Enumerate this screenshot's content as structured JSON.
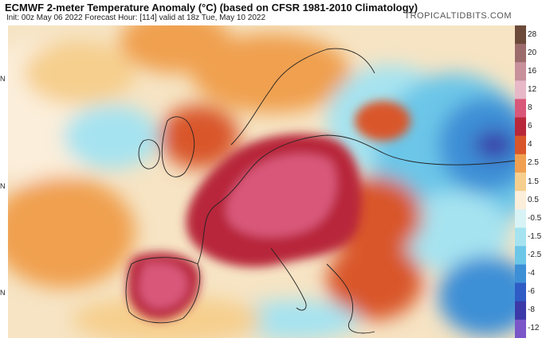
{
  "header": {
    "title": "ECMWF 2-meter Temperature Anomaly (°C) (based on CFSR 1981-2010 Climatology)",
    "subtitle": "Init: 00z May 06 2022   Forecast Hour: [114]   valid at 18z Tue, May 10 2022",
    "brand": "TROPICALTIDBITS.COM"
  },
  "map": {
    "lat_marks": [
      "N",
      "N",
      "N"
    ]
  },
  "colorbar": {
    "labels": [
      "28",
      "20",
      "16",
      "12",
      "8",
      "6",
      "4",
      "2.5",
      "1.5",
      "0.5",
      "-0.5",
      "-1.5",
      "-2.5",
      "-4",
      "-6",
      "-8",
      "-12"
    ],
    "colors": [
      "#6b4a3a",
      "#9c6b6b",
      "#c7909a",
      "#e6b8c8",
      "#d9587a",
      "#b8283a",
      "#d9562a",
      "#f0a050",
      "#f6cf8e",
      "#fbeeda",
      "#d8f3f6",
      "#a6e3f0",
      "#6cc6e8",
      "#3d8fd6",
      "#2e5cc4",
      "#3b3aa8",
      "#7a56c8"
    ]
  }
}
